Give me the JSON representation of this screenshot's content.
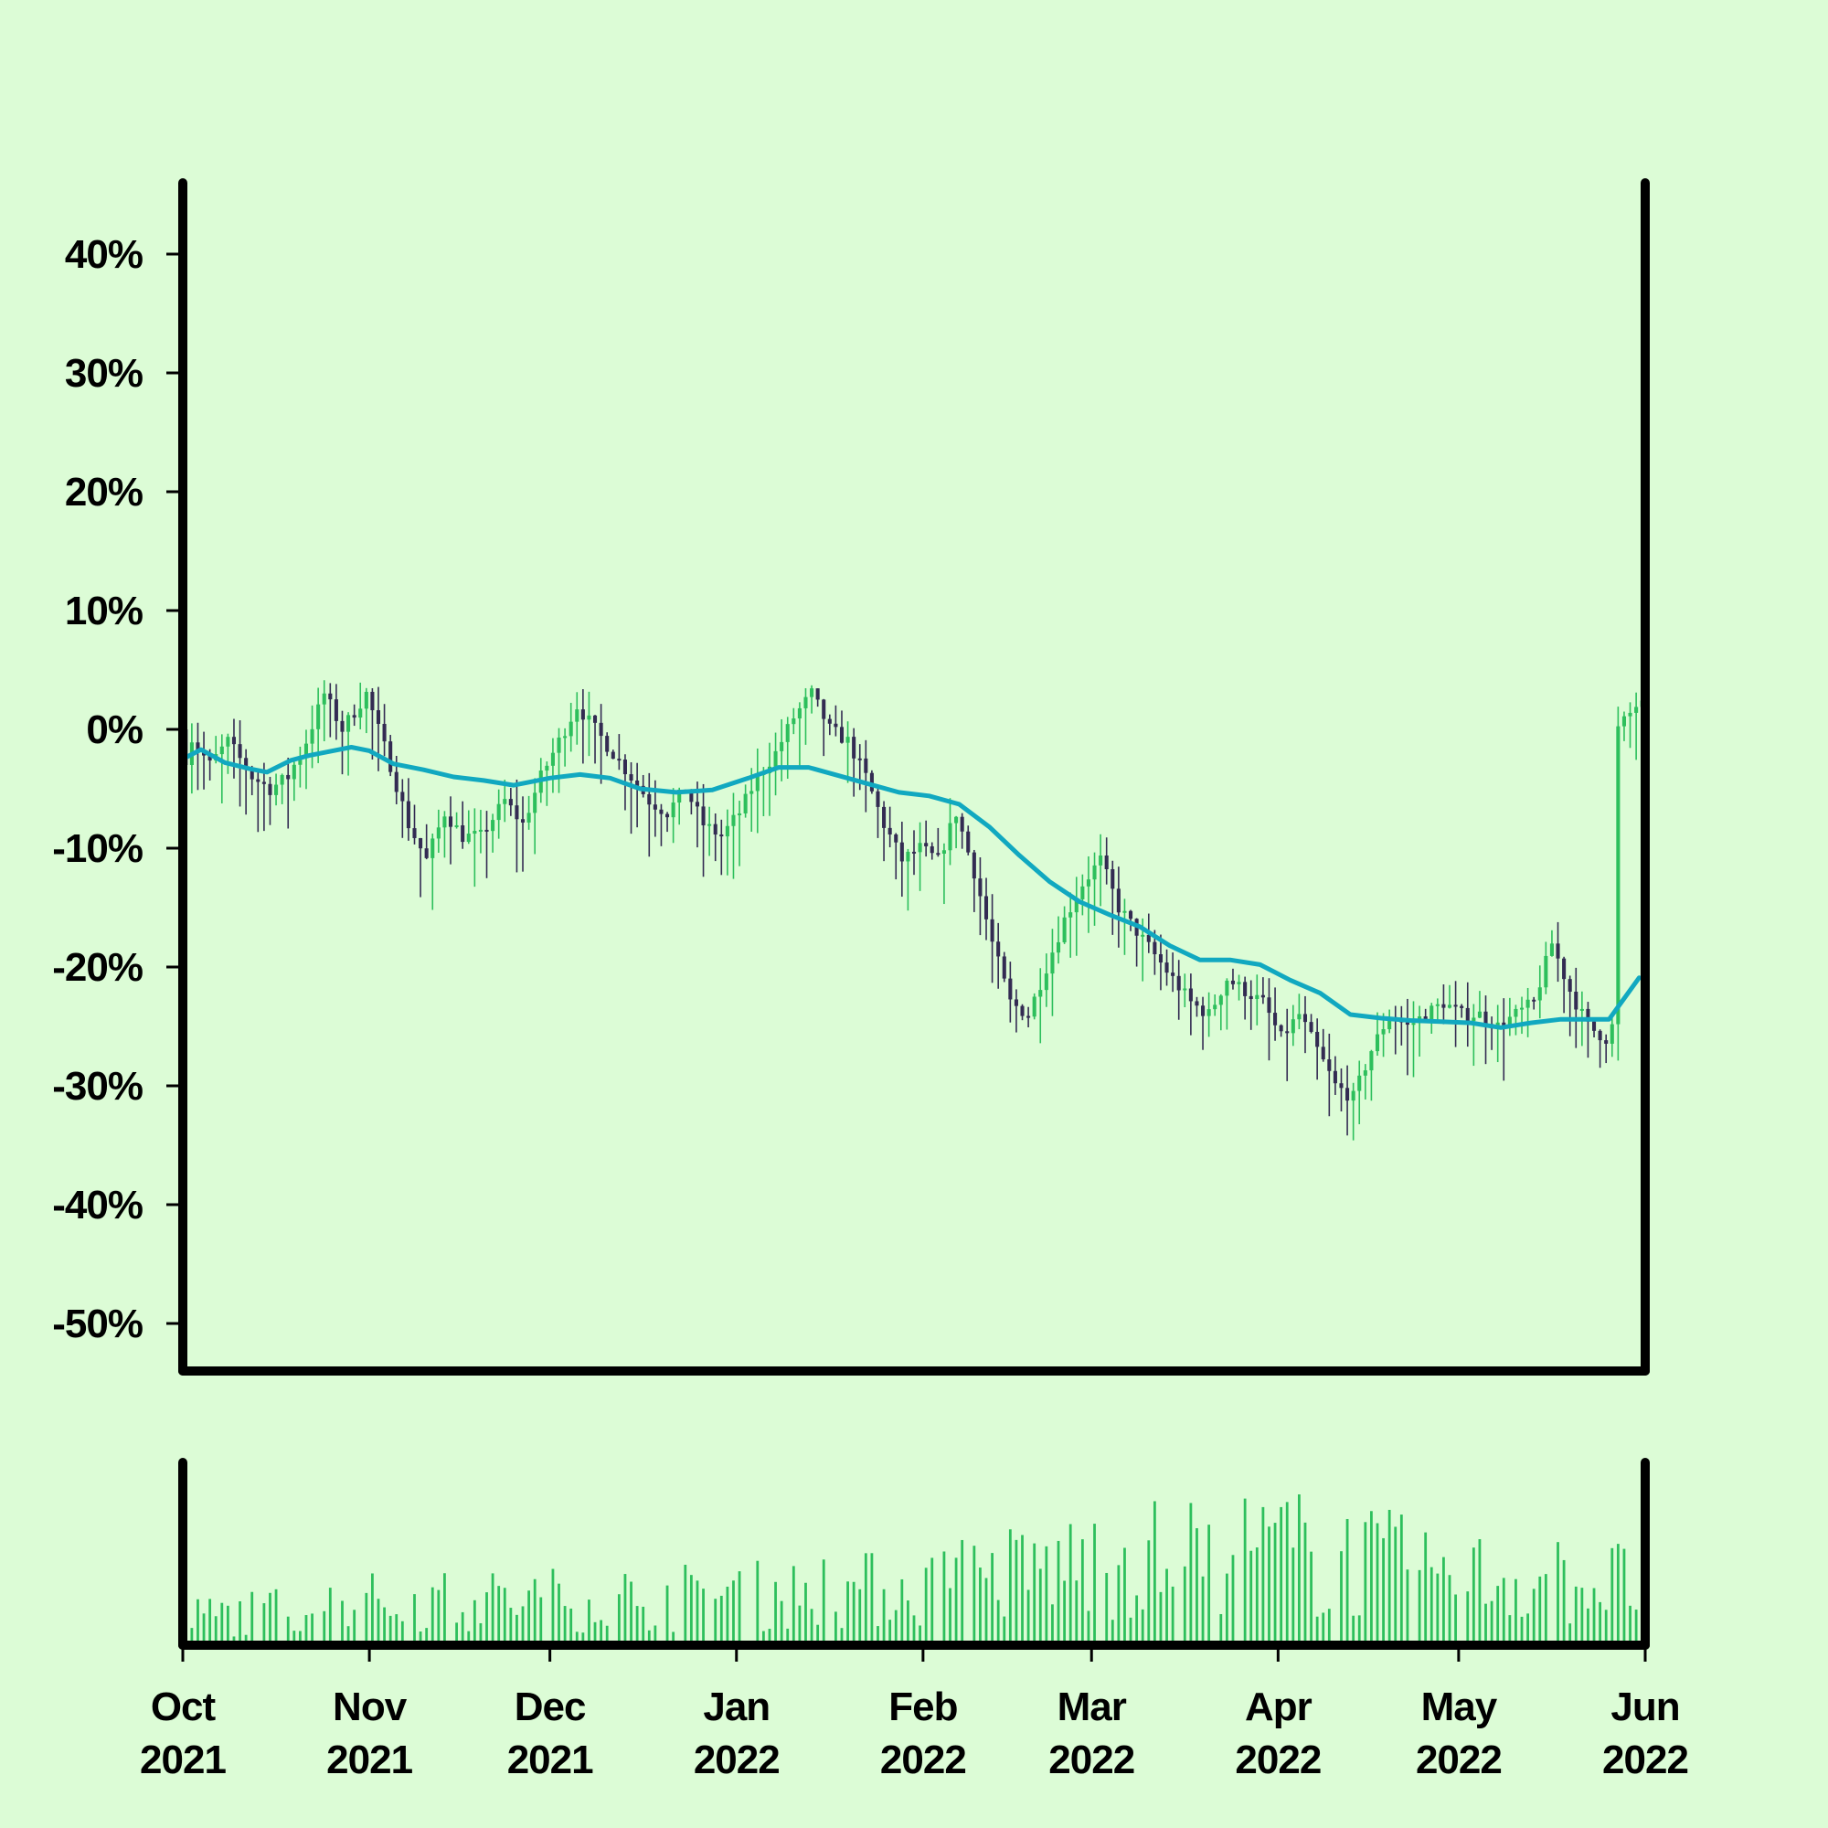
{
  "chart_data": {
    "type": "candlestick",
    "subtype": "percent-change candlestick with moving average and volume panel",
    "title": "",
    "xlabel": "",
    "ylabel": "",
    "y_unit": "%",
    "ylim": [
      -54,
      46
    ],
    "y_ticks": [
      40,
      30,
      20,
      10,
      0,
      -10,
      -20,
      -30,
      -40,
      -50
    ],
    "y_tick_labels": [
      "40%",
      "30%",
      "20%",
      "10%",
      "0%",
      "-10%",
      "-20%",
      "-30%",
      "-40%",
      "-50%"
    ],
    "x_range": [
      "2021-10-01",
      "2022-06-01"
    ],
    "x_ticks": [
      {
        "date": "2021-10-01",
        "month": "Oct",
        "year": "2021"
      },
      {
        "date": "2021-11-01",
        "month": "Nov",
        "year": "2021"
      },
      {
        "date": "2021-12-01",
        "month": "Dec",
        "year": "2021"
      },
      {
        "date": "2022-01-01",
        "month": "Jan",
        "year": "2022"
      },
      {
        "date": "2022-02-01",
        "month": "Feb",
        "year": "2022"
      },
      {
        "date": "2022-03-01",
        "month": "Mar",
        "year": "2022"
      },
      {
        "date": "2022-04-01",
        "month": "Apr",
        "year": "2022"
      },
      {
        "date": "2022-05-01",
        "month": "May",
        "year": "2022"
      },
      {
        "date": "2022-06-01",
        "month": "Jun",
        "year": "2022"
      }
    ],
    "close_path": [
      [
        "2021-10-01",
        0
      ],
      [
        "2021-10-05",
        -3
      ],
      [
        "2021-10-08",
        -1
      ],
      [
        "2021-10-12",
        -4
      ],
      [
        "2021-10-15",
        -5
      ],
      [
        "2021-10-18",
        -4
      ],
      [
        "2021-10-21",
        -1
      ],
      [
        "2021-10-24",
        3
      ],
      [
        "2021-10-27",
        0
      ],
      [
        "2021-10-31",
        3
      ],
      [
        "2021-11-04",
        -3
      ],
      [
        "2021-11-07",
        -8
      ],
      [
        "2021-11-10",
        -11
      ],
      [
        "2021-11-13",
        -7
      ],
      [
        "2021-11-16",
        -9
      ],
      [
        "2021-11-19",
        -9
      ],
      [
        "2021-11-23",
        -6
      ],
      [
        "2021-11-26",
        -8
      ],
      [
        "2021-11-29",
        -4
      ],
      [
        "2021-12-02",
        -1
      ],
      [
        "2021-12-05",
        2
      ],
      [
        "2021-12-08",
        0
      ],
      [
        "2021-12-11",
        -2
      ],
      [
        "2021-12-14",
        -4
      ],
      [
        "2021-12-17",
        -6
      ],
      [
        "2021-12-20",
        -7
      ],
      [
        "2021-12-23",
        -5
      ],
      [
        "2021-12-26",
        -8
      ],
      [
        "2021-12-29",
        -9
      ],
      [
        "2022-01-01",
        -7
      ],
      [
        "2022-01-04",
        -4
      ],
      [
        "2022-01-07",
        -2
      ],
      [
        "2022-01-10",
        1
      ],
      [
        "2022-01-13",
        3
      ],
      [
        "2022-01-16",
        0
      ],
      [
        "2022-01-19",
        -1
      ],
      [
        "2022-01-22",
        -4
      ],
      [
        "2022-01-25",
        -8
      ],
      [
        "2022-01-28",
        -11
      ],
      [
        "2022-01-31",
        -10
      ],
      [
        "2022-02-03",
        -11
      ],
      [
        "2022-02-06",
        -7
      ],
      [
        "2022-02-09",
        -12
      ],
      [
        "2022-02-12",
        -18
      ],
      [
        "2022-02-15",
        -23
      ],
      [
        "2022-02-18",
        -24
      ],
      [
        "2022-02-21",
        -20
      ],
      [
        "2022-02-24",
        -16
      ],
      [
        "2022-02-27",
        -13
      ],
      [
        "2022-03-02",
        -11
      ],
      [
        "2022-03-05",
        -15
      ],
      [
        "2022-03-08",
        -17
      ],
      [
        "2022-03-11",
        -19
      ],
      [
        "2022-03-14",
        -21
      ],
      [
        "2022-03-17",
        -23
      ],
      [
        "2022-03-20",
        -24
      ],
      [
        "2022-03-23",
        -21
      ],
      [
        "2022-03-26",
        -22
      ],
      [
        "2022-03-29",
        -23
      ],
      [
        "2022-04-01",
        -26
      ],
      [
        "2022-04-04",
        -24
      ],
      [
        "2022-04-07",
        -27
      ],
      [
        "2022-04-10",
        -30
      ],
      [
        "2022-04-13",
        -31
      ],
      [
        "2022-04-16",
        -27
      ],
      [
        "2022-04-19",
        -24
      ],
      [
        "2022-04-22",
        -25
      ],
      [
        "2022-04-25",
        -24
      ],
      [
        "2022-04-28",
        -23
      ],
      [
        "2022-05-01",
        -24
      ],
      [
        "2022-05-04",
        -24
      ],
      [
        "2022-05-07",
        -25
      ],
      [
        "2022-05-10",
        -24
      ],
      [
        "2022-05-13",
        -23
      ],
      [
        "2022-05-16",
        -18
      ],
      [
        "2022-05-19",
        -22
      ],
      [
        "2022-05-22",
        -25
      ],
      [
        "2022-05-25",
        -26
      ],
      [
        "2022-05-26",
        -25
      ],
      [
        "2022-05-27",
        0
      ],
      [
        "2022-05-30",
        2
      ],
      [
        "2022-05-31",
        2
      ]
    ],
    "moving_average": [
      [
        "2021-10-01",
        -2.5
      ],
      [
        "2021-10-04",
        -1.7
      ],
      [
        "2021-10-08",
        -2.8
      ],
      [
        "2021-10-12",
        -3.3
      ],
      [
        "2021-10-15",
        -3.6
      ],
      [
        "2021-10-19",
        -2.6
      ],
      [
        "2021-10-22",
        -2.2
      ],
      [
        "2021-10-25",
        -1.9
      ],
      [
        "2021-10-29",
        -1.5
      ],
      [
        "2021-11-01",
        -1.8
      ],
      [
        "2021-11-05",
        -2.9
      ],
      [
        "2021-11-10",
        -3.4
      ],
      [
        "2021-11-15",
        -4.0
      ],
      [
        "2021-11-20",
        -4.3
      ],
      [
        "2021-11-25",
        -4.7
      ],
      [
        "2021-12-01",
        -4.1
      ],
      [
        "2021-12-06",
        -3.8
      ],
      [
        "2021-12-11",
        -4.1
      ],
      [
        "2021-12-16",
        -5.0
      ],
      [
        "2021-12-22",
        -5.3
      ],
      [
        "2021-12-28",
        -5.1
      ],
      [
        "2022-01-03",
        -4.1
      ],
      [
        "2022-01-08",
        -3.2
      ],
      [
        "2022-01-13",
        -3.2
      ],
      [
        "2022-01-18",
        -3.9
      ],
      [
        "2022-01-23",
        -4.6
      ],
      [
        "2022-01-28",
        -5.3
      ],
      [
        "2022-02-02",
        -5.6
      ],
      [
        "2022-02-07",
        -6.3
      ],
      [
        "2022-02-12",
        -8.2
      ],
      [
        "2022-02-17",
        -10.6
      ],
      [
        "2022-02-22",
        -12.8
      ],
      [
        "2022-02-27",
        -14.5
      ],
      [
        "2022-03-04",
        -15.6
      ],
      [
        "2022-03-09",
        -16.6
      ],
      [
        "2022-03-14",
        -18.2
      ],
      [
        "2022-03-19",
        -19.4
      ],
      [
        "2022-03-24",
        -19.4
      ],
      [
        "2022-03-29",
        -19.8
      ],
      [
        "2022-04-03",
        -21.1
      ],
      [
        "2022-04-08",
        -22.2
      ],
      [
        "2022-04-13",
        -24.0
      ],
      [
        "2022-04-18",
        -24.3
      ],
      [
        "2022-04-23",
        -24.5
      ],
      [
        "2022-04-28",
        -24.6
      ],
      [
        "2022-05-03",
        -24.7
      ],
      [
        "2022-05-08",
        -25.1
      ],
      [
        "2022-05-13",
        -24.7
      ],
      [
        "2022-05-18",
        -24.4
      ],
      [
        "2022-05-23",
        -24.4
      ],
      [
        "2022-05-26",
        -24.4
      ],
      [
        "2022-05-31",
        -20.9
      ]
    ],
    "volume_profile": [
      [
        "2021-10-01",
        0.18
      ],
      [
        "2021-11-01",
        0.28
      ],
      [
        "2021-12-01",
        0.3
      ],
      [
        "2022-01-01",
        0.32
      ],
      [
        "2022-02-01",
        0.38
      ],
      [
        "2022-03-01",
        0.55
      ],
      [
        "2022-04-01",
        0.62
      ],
      [
        "2022-05-01",
        0.45
      ],
      [
        "2022-06-01",
        0.4
      ]
    ],
    "grid": false,
    "legend": "none",
    "colors": {
      "background": "#dcfcd6",
      "up_candle": "#2dbf5c",
      "down_candle": "#332b52",
      "moving_average": "#11a8c0",
      "volume": "#2dbf5c",
      "axis": "#000000"
    }
  }
}
